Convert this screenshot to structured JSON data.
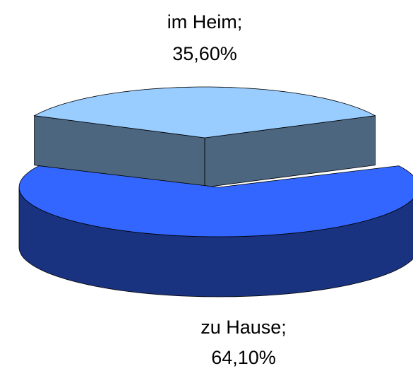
{
  "chart_data": {
    "type": "pie3d",
    "categories": [
      "im Heim;",
      "zu Hause;"
    ],
    "values": [
      35.6,
      64.1
    ],
    "value_labels": [
      "35,60%",
      "64,10%"
    ],
    "colors": [
      "#99ccff",
      "#3366ff"
    ],
    "side_colors": [
      "#4d6680",
      "#1a3380"
    ]
  }
}
